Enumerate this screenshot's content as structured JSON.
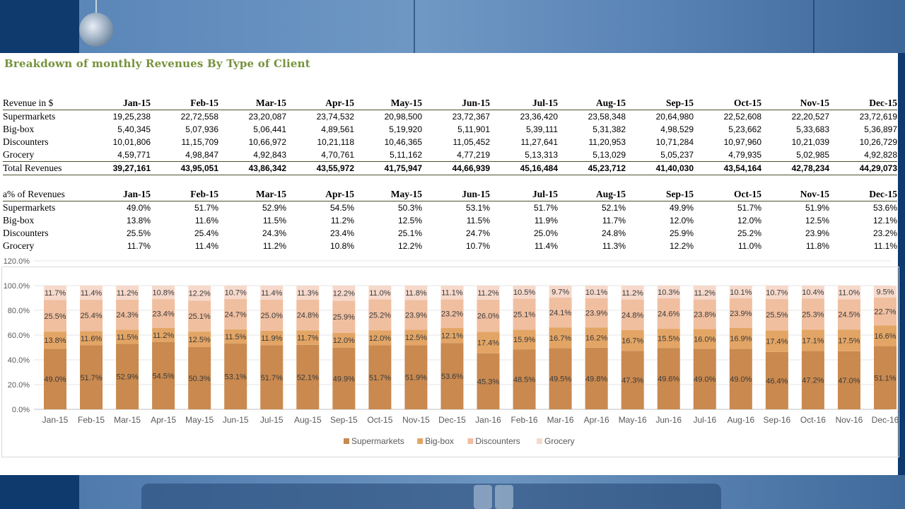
{
  "title": "Breakdown of monthly Revenues By Type of Client",
  "months": [
    "Jan-15",
    "Feb-15",
    "Mar-15",
    "Apr-15",
    "May-15",
    "Jun-15",
    "Jul-15",
    "Aug-15",
    "Sep-15",
    "Oct-15",
    "Nov-15",
    "Dec-15"
  ],
  "revenue_table": {
    "header_label": "Revenue in $",
    "rows": [
      {
        "label": "Supermarkets",
        "values": [
          "19,25,238",
          "22,72,558",
          "23,20,087",
          "23,74,532",
          "20,98,500",
          "23,72,367",
          "23,36,420",
          "23,58,348",
          "20,64,980",
          "22,52,608",
          "22,20,527",
          "23,72,619"
        ]
      },
      {
        "label": "Big-box",
        "values": [
          "5,40,345",
          "5,07,936",
          "5,06,441",
          "4,89,561",
          "5,19,920",
          "5,11,901",
          "5,39,111",
          "5,31,382",
          "4,98,529",
          "5,23,662",
          "5,33,683",
          "5,36,897"
        ]
      },
      {
        "label": "Discounters",
        "values": [
          "10,01,806",
          "11,15,709",
          "10,66,972",
          "10,21,118",
          "10,46,365",
          "11,05,452",
          "11,27,641",
          "11,20,953",
          "10,71,284",
          "10,97,960",
          "10,21,039",
          "10,26,729"
        ]
      },
      {
        "label": "Grocery",
        "values": [
          "4,59,771",
          "4,98,847",
          "4,92,843",
          "4,70,761",
          "5,11,162",
          "4,77,219",
          "5,13,313",
          "5,13,029",
          "5,05,237",
          "4,79,935",
          "5,02,985",
          "4,92,828"
        ]
      }
    ],
    "total": {
      "label": "Total Revenues",
      "values": [
        "39,27,161",
        "43,95,051",
        "43,86,342",
        "43,55,972",
        "41,75,947",
        "44,66,939",
        "45,16,484",
        "45,23,712",
        "41,40,030",
        "43,54,164",
        "42,78,234",
        "44,29,073"
      ]
    }
  },
  "pct_table": {
    "header_label": "a% of Revenues",
    "rows": [
      {
        "label": "Supermarkets",
        "values": [
          "49.0%",
          "51.7%",
          "52.9%",
          "54.5%",
          "50.3%",
          "53.1%",
          "51.7%",
          "52.1%",
          "49.9%",
          "51.7%",
          "51.9%",
          "53.6%"
        ]
      },
      {
        "label": "Big-box",
        "values": [
          "13.8%",
          "11.6%",
          "11.5%",
          "11.2%",
          "12.5%",
          "11.5%",
          "11.9%",
          "11.7%",
          "12.0%",
          "12.0%",
          "12.5%",
          "12.1%"
        ]
      },
      {
        "label": "Discounters",
        "values": [
          "25.5%",
          "25.4%",
          "24.3%",
          "23.4%",
          "25.1%",
          "24.7%",
          "25.0%",
          "24.8%",
          "25.9%",
          "25.2%",
          "23.9%",
          "23.2%"
        ]
      },
      {
        "label": "Grocery",
        "values": [
          "11.7%",
          "11.4%",
          "11.2%",
          "10.8%",
          "12.2%",
          "10.7%",
          "11.4%",
          "11.3%",
          "12.2%",
          "11.0%",
          "11.8%",
          "11.1%"
        ]
      }
    ]
  },
  "chart_data": {
    "type": "bar",
    "stacked": true,
    "categories": [
      "Jan-15",
      "Feb-15",
      "Mar-15",
      "Apr-15",
      "May-15",
      "Jun-15",
      "Jul-15",
      "Aug-15",
      "Sep-15",
      "Oct-15",
      "Nov-15",
      "Dec-15",
      "Jan-16",
      "Feb-16",
      "Mar-16",
      "Apr-16",
      "May-16",
      "Jun-16",
      "Jul-16",
      "Aug-16",
      "Sep-16",
      "Oct-16",
      "Nov-16",
      "Dec-16"
    ],
    "yticks": [
      "0.0%",
      "20.0%",
      "40.0%",
      "60.0%",
      "80.0%",
      "100.0%",
      "120.0%"
    ],
    "ylim": [
      0,
      120
    ],
    "grid": true,
    "legend_position": "bottom",
    "series": [
      {
        "name": "Supermarkets",
        "color": "#c9894f",
        "label_color": "#3a3a3a",
        "values": [
          49.0,
          51.7,
          52.9,
          54.5,
          50.3,
          53.1,
          51.7,
          52.1,
          49.9,
          51.7,
          51.9,
          53.6,
          45.3,
          48.5,
          49.5,
          49.8,
          47.3,
          49.6,
          49.0,
          49.0,
          46.4,
          47.2,
          47.0,
          51.1
        ]
      },
      {
        "name": "Big-box",
        "color": "#e3a565",
        "label_color": "#3a3a3a",
        "values": [
          13.8,
          11.6,
          11.5,
          11.2,
          12.5,
          11.5,
          11.9,
          11.7,
          12.0,
          12.0,
          12.5,
          12.1,
          17.4,
          15.9,
          16.7,
          16.2,
          16.7,
          15.5,
          16.0,
          16.9,
          17.4,
          17.1,
          17.5,
          16.6
        ]
      },
      {
        "name": "Discounters",
        "color": "#f0bfa0",
        "label_color": "#3a3a3a",
        "values": [
          25.5,
          25.4,
          24.3,
          23.4,
          25.1,
          24.7,
          25.0,
          24.8,
          25.9,
          25.2,
          23.9,
          23.2,
          26.0,
          25.1,
          24.1,
          23.9,
          24.8,
          24.6,
          23.8,
          23.9,
          25.5,
          25.3,
          24.5,
          22.7
        ]
      },
      {
        "name": "Grocery",
        "color": "#f6d9cb",
        "label_color": "#3a3a3a",
        "values": [
          11.7,
          11.4,
          11.2,
          10.8,
          12.2,
          10.7,
          11.4,
          11.3,
          12.2,
          11.0,
          11.8,
          11.1,
          11.2,
          10.5,
          9.7,
          10.1,
          11.2,
          10.3,
          11.2,
          10.1,
          10.7,
          10.4,
          11.0,
          9.5
        ]
      }
    ]
  }
}
